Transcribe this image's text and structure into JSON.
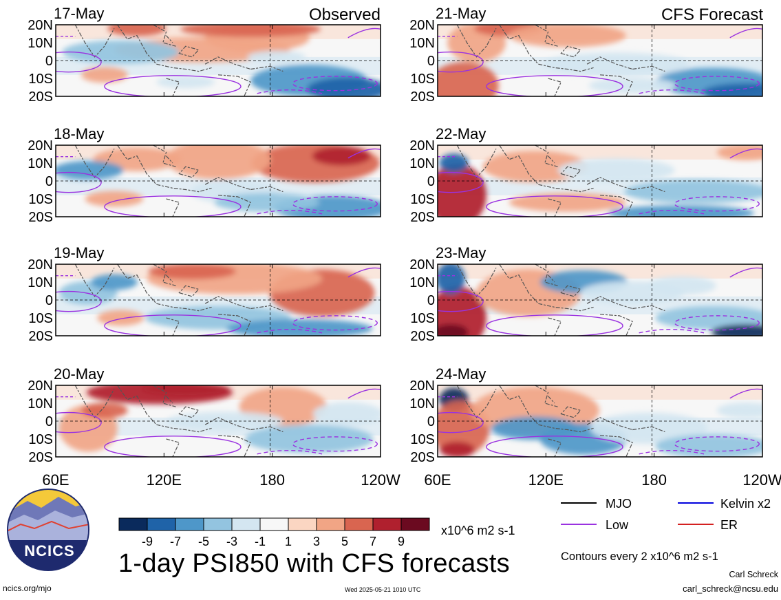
{
  "header": {
    "observed_label": "Observed",
    "forecast_label": "CFS Forecast"
  },
  "panels": [
    {
      "date": "17-May",
      "type": "observed"
    },
    {
      "date": "18-May",
      "type": "observed"
    },
    {
      "date": "19-May",
      "type": "observed"
    },
    {
      "date": "20-May",
      "type": "observed"
    },
    {
      "date": "21-May",
      "type": "forecast"
    },
    {
      "date": "22-May",
      "type": "forecast"
    },
    {
      "date": "23-May",
      "type": "forecast"
    },
    {
      "date": "24-May",
      "type": "forecast"
    }
  ],
  "lat_labels": [
    "20N",
    "10N",
    "0",
    "10S",
    "20S"
  ],
  "lon_labels": [
    "60E",
    "120E",
    "180",
    "120W"
  ],
  "colorbar": {
    "colors": [
      "#0a2a5c",
      "#1f63a8",
      "#4e97c9",
      "#93c4e0",
      "#d4e6f1",
      "#f7f7f7",
      "#fbd6c2",
      "#f1a585",
      "#d96550",
      "#b0202e",
      "#6b0a20"
    ],
    "tick_labels": [
      "-9",
      "-7",
      "-5",
      "-3",
      "-1",
      "1",
      "3",
      "5",
      "7",
      "9"
    ],
    "units": "x10^6 m2 s-1"
  },
  "title": "1-day PSI850 with CFS forecasts",
  "contours_note": "Contours every 2 x10^6 m2 s-1",
  "legend": [
    {
      "label": "MJO",
      "color": "#000000"
    },
    {
      "label": "Kelvin x2",
      "color": "#0000dd"
    },
    {
      "label": "Low",
      "color": "#9a32e0"
    },
    {
      "label": "ER",
      "color": "#d42020"
    }
  ],
  "logo": {
    "text": "NCICS"
  },
  "footer": {
    "url": "ncics.org/mjo",
    "timestamp": "Wed 2025-05-21 1010 UTC",
    "author": "Carl Schreck",
    "email": "carl_schreck@ncsu.edu"
  }
}
